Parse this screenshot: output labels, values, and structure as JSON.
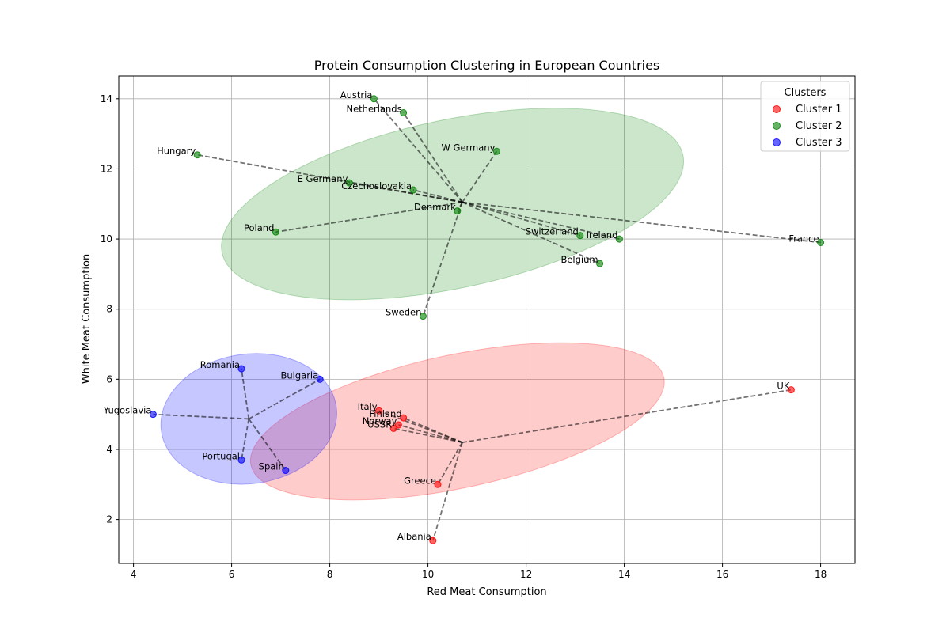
{
  "chart_data": {
    "type": "scatter",
    "title": "Protein Consumption Clustering in European Countries",
    "xlabel": "Red Meat Consumption",
    "ylabel": "White Meat Consumption",
    "xlim": [
      3.7,
      18.7
    ],
    "ylim": [
      0.75,
      14.65
    ],
    "xticks": [
      4,
      6,
      8,
      10,
      12,
      14,
      16,
      18
    ],
    "yticks": [
      2,
      4,
      6,
      8,
      10,
      12,
      14
    ],
    "grid": true,
    "legend": {
      "title": "Clusters",
      "placement": "top-right"
    },
    "series": [
      {
        "name": "Cluster 1",
        "color": "#ff0000",
        "centroid": [
          10.7,
          4.2
        ],
        "ellipse": {
          "center": [
            10.6,
            4.8
          ],
          "rx_data": 4.3,
          "ry_data": 1.9,
          "angle_deg": -12,
          "fill": "#ff0000",
          "opacity": 0.2
        },
        "points": [
          {
            "label": "Albania",
            "x": 10.1,
            "y": 1.4
          },
          {
            "label": "Finland",
            "x": 9.5,
            "y": 4.9
          },
          {
            "label": "Greece",
            "x": 10.2,
            "y": 3.0
          },
          {
            "label": "Italy",
            "x": 9.0,
            "y": 5.1
          },
          {
            "label": "Norway",
            "x": 9.4,
            "y": 4.7
          },
          {
            "label": "UK",
            "x": 17.4,
            "y": 5.7
          },
          {
            "label": "USSR",
            "x": 9.3,
            "y": 4.6
          }
        ]
      },
      {
        "name": "Cluster 2",
        "color": "#008000",
        "centroid": [
          10.7,
          11.05
        ],
        "ellipse": {
          "center": [
            10.5,
            11.0
          ],
          "rx_data": 4.8,
          "ry_data": 2.4,
          "angle_deg": -12,
          "fill": "#008000",
          "opacity": 0.2
        },
        "points": [
          {
            "label": "Austria",
            "x": 8.9,
            "y": 14.0
          },
          {
            "label": "Belgium",
            "x": 13.5,
            "y": 9.3
          },
          {
            "label": "Czechoslovakia",
            "x": 9.7,
            "y": 11.4
          },
          {
            "label": "Denmark",
            "x": 10.6,
            "y": 10.8
          },
          {
            "label": "E Germany",
            "x": 8.4,
            "y": 11.6
          },
          {
            "label": "France",
            "x": 18.0,
            "y": 9.9
          },
          {
            "label": "Hungary",
            "x": 5.3,
            "y": 12.4
          },
          {
            "label": "Ireland",
            "x": 13.9,
            "y": 10.0
          },
          {
            "label": "Netherlands",
            "x": 9.5,
            "y": 13.6
          },
          {
            "label": "Poland",
            "x": 6.9,
            "y": 10.2
          },
          {
            "label": "Sweden",
            "x": 9.9,
            "y": 7.8
          },
          {
            "label": "Switzerland",
            "x": 13.1,
            "y": 10.1
          },
          {
            "label": "W Germany",
            "x": 11.4,
            "y": 12.5
          }
        ]
      },
      {
        "name": "Cluster 3",
        "color": "#0000ff",
        "centroid": [
          6.35,
          4.87
        ],
        "ellipse": {
          "center": [
            6.35,
            4.87
          ],
          "rx_data": 1.8,
          "ry_data": 1.85,
          "angle_deg": -8,
          "fill": "#0000ff",
          "opacity": 0.22
        },
        "points": [
          {
            "label": "Bulgaria",
            "x": 7.8,
            "y": 6.0
          },
          {
            "label": "Portugal",
            "x": 6.2,
            "y": 3.7
          },
          {
            "label": "Romania",
            "x": 6.2,
            "y": 6.3
          },
          {
            "label": "Spain",
            "x": 7.1,
            "y": 3.4
          },
          {
            "label": "Yugoslavia",
            "x": 4.4,
            "y": 5.0
          }
        ]
      }
    ]
  }
}
